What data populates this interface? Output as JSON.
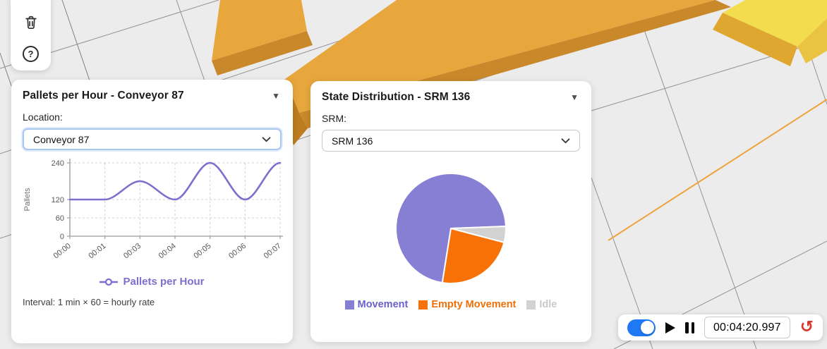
{
  "toolbar": {
    "help_glyph": "?"
  },
  "panels": {
    "pallets": {
      "title": "Pallets per Hour - Conveyor 87",
      "collapse_glyph": "▼",
      "location_label": "Location:",
      "select_value": "Conveyor 87",
      "series_label": "Pallets per Hour",
      "interval_note": "Interval: 1 min × 60 = hourly rate"
    },
    "state": {
      "title": "State Distribution - SRM 136",
      "collapse_glyph": "▼",
      "srm_label": "SRM:",
      "select_value": "SRM 136"
    }
  },
  "playback": {
    "time_value": "00:04:20.997",
    "toggle_on": true,
    "reset_glyph": "↺"
  },
  "accent_colors": {
    "select_focus_border": "#a6c8ef",
    "toggle_blue": "#1f78f4",
    "reset_red": "#d9352b",
    "conveyor_gold": "#e8a73d",
    "conveyor_shadow": "#c9882a",
    "ramp_yellow": "#f3dd4f",
    "ground_axis_orange": "#efa33c",
    "grid_line_gray": "#838383"
  },
  "chart_data": [
    {
      "type": "line",
      "title": "Pallets per Hour - Conveyor 87",
      "x": [
        "00:00",
        "00:01",
        "00:03",
        "00:04",
        "00:05",
        "00:06",
        "00:07"
      ],
      "series": [
        {
          "name": "Pallets per Hour",
          "values": [
            120,
            120,
            180,
            120,
            240,
            120,
            240
          ]
        }
      ],
      "xlabel": "",
      "ylabel": "Pallets",
      "yticks": [
        0,
        60,
        120,
        240
      ],
      "ylim": [
        0,
        240
      ],
      "line_color": "#7b70ce",
      "grid": true,
      "legend_position": "bottom"
    },
    {
      "type": "pie",
      "title": "State Distribution - SRM 136",
      "labels": [
        "Movement",
        "Empty Movement",
        "Idle"
      ],
      "values_pct": [
        71.9,
        23.4,
        4.7
      ],
      "colors": [
        "#877fd4",
        "#f77107",
        "#d2d2d2"
      ],
      "label_colors": [
        "#6b61c9",
        "#ee7008",
        "#c9c9c9"
      ],
      "start_angle_deg": 189,
      "draw_order": [
        0,
        2,
        1
      ],
      "legend_position": "bottom"
    }
  ]
}
